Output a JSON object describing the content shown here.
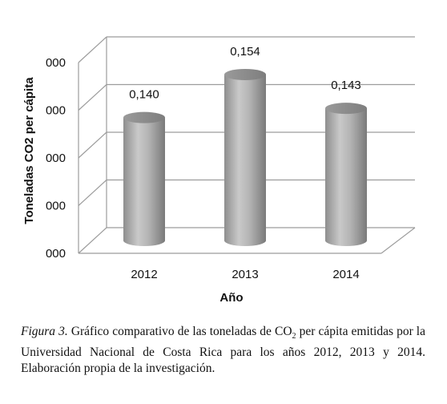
{
  "chart_data": {
    "type": "bar",
    "style": "3d-cylinder",
    "categories": [
      "2012",
      "2013",
      "2014"
    ],
    "values": [
      0.14,
      0.154,
      0.143
    ],
    "data_labels": [
      "0,140",
      "0,154",
      "0,143"
    ],
    "ylabel": "Toneladas  CO2  per cápita",
    "xlabel": "Año",
    "ytick_labels": [
      "000",
      "000",
      "000",
      "000",
      "000"
    ],
    "bar_color": "#a9a9a9",
    "grid": true
  },
  "caption": {
    "figure_label": "Figura 3.",
    "text_before_sub": "Gráfico comparativo de las toneladas de CO",
    "sub": "2",
    "text_after_sub": " per cápita emitidas por la Universidad Nacional de Costa Rica para los años 2012, 2013 y 2014. Elaboración propia de la investigación."
  }
}
